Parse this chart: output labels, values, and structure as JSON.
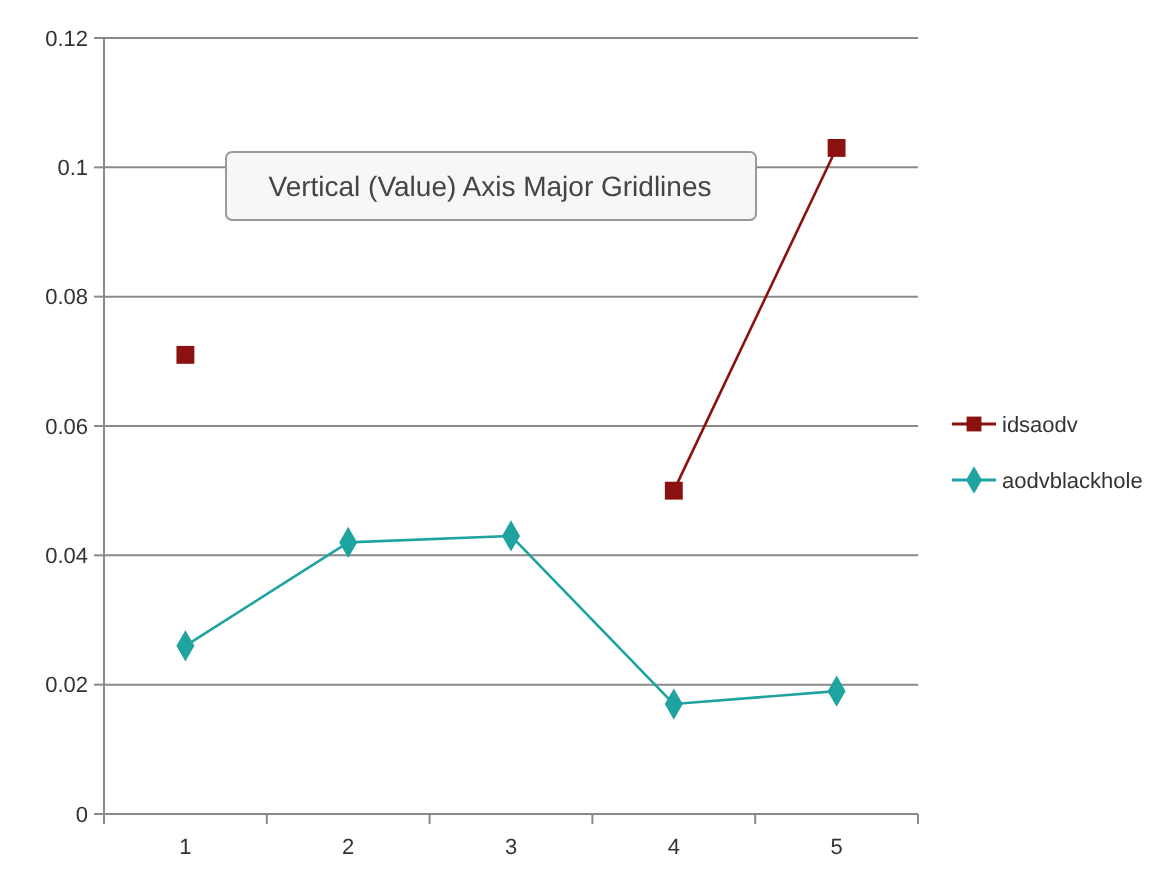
{
  "chart_data": {
    "type": "line",
    "categories": [
      "1",
      "2",
      "3",
      "4",
      "5"
    ],
    "series": [
      {
        "name": "idsaodv",
        "color": "#8b1010",
        "marker": "square",
        "values": [
          0.071,
          null,
          null,
          0.05,
          0.103
        ]
      },
      {
        "name": "aodvblackhole",
        "color": "#1fa3a0",
        "marker": "diamond",
        "values": [
          0.026,
          0.042,
          0.043,
          0.017,
          0.019
        ]
      }
    ],
    "ylim": [
      0,
      0.12
    ],
    "yticks": [
      0,
      0.02,
      0.04,
      0.06,
      0.08,
      0.1,
      0.12
    ],
    "grid": "y",
    "legend": "right",
    "annotations": [
      "Vertical (Value) Axis Major Gridlines"
    ]
  }
}
